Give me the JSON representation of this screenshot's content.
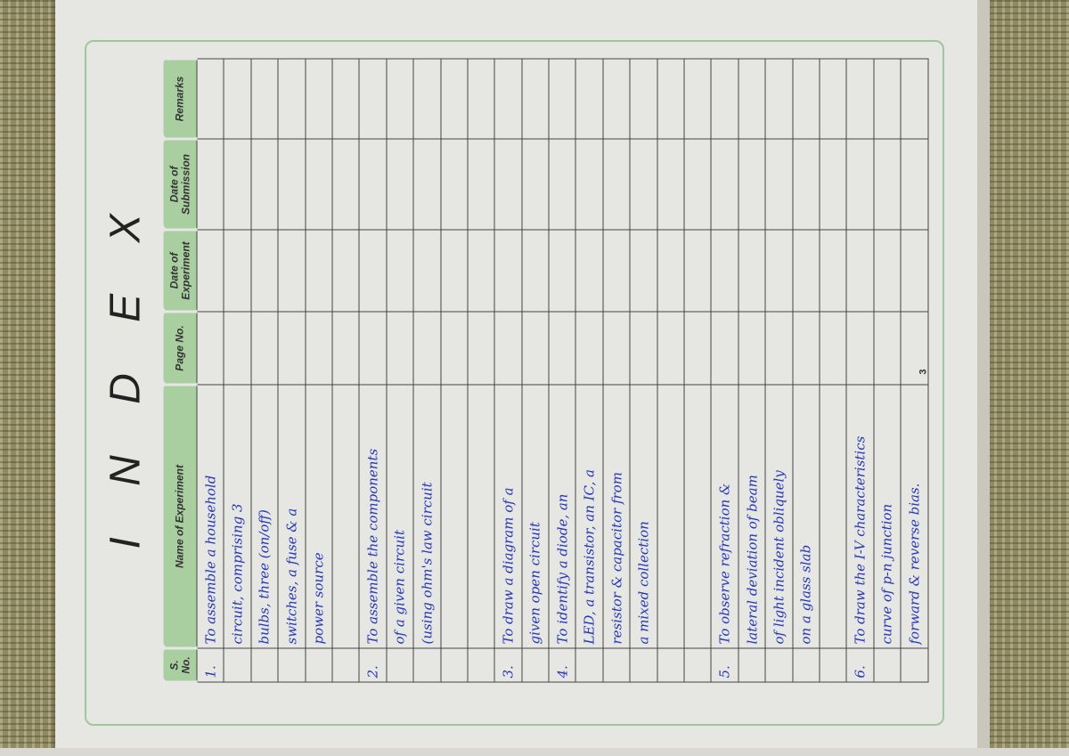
{
  "title": "I N D E X",
  "page_number": "3",
  "headers": [
    "S. No.",
    "Name of Experiment",
    "Page No.",
    "Date of Experiment",
    "Date of Submission",
    "Remarks"
  ],
  "total_rows": 27,
  "experiments": [
    {
      "sno": "1.",
      "start_row": 0,
      "lines": [
        "To assemble a household",
        "circuit, comprising 3",
        "bulbs, three (on/off)",
        "switches, a fuse & a",
        "power source"
      ]
    },
    {
      "sno": "2.",
      "start_row": 6,
      "lines": [
        "To assemble the components",
        "of a given circuit",
        "(using ohm's law circuit"
      ]
    },
    {
      "sno": "3.",
      "start_row": 11,
      "lines": [
        "To draw a diagram of a",
        "given open circuit"
      ]
    },
    {
      "sno": "4.",
      "start_row": 13,
      "lines": [
        "To identify a diode, an",
        "LED, a transistor, an IC, a",
        "resistor & capacitor from",
        "a mixed collection"
      ]
    },
    {
      "sno": "5.",
      "start_row": 19,
      "lines": [
        "To observe refraction &",
        "lateral deviation of beam",
        "of light incident obliquely",
        "on a glass slab"
      ]
    },
    {
      "sno": "6.",
      "start_row": 24,
      "lines": [
        "To draw the I-V characteristics",
        "curve of p-n junction",
        "forward & reverse bias."
      ]
    }
  ]
}
